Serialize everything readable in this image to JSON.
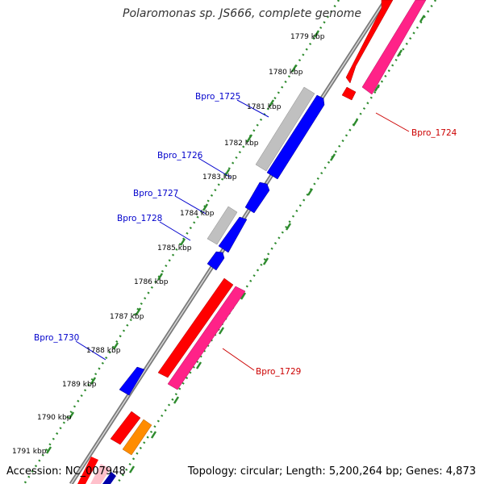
{
  "title": "Polaromonas sp. JS666, complete genome",
  "footer": {
    "accession": "Accession: NC_007948",
    "summary": "Topology: circular; Length: 5,200,264 bp; Genes: 4,873"
  },
  "colors": {
    "backbone": "#7a7a7a",
    "ticks_green": "#2e8b2e",
    "cds_red": "#ff0000",
    "cds_pink": "#ff2288",
    "cds_blue": "#0000ff",
    "cds_gray": "#c0c0c0",
    "cds_orange": "#ff8c00",
    "label_blue": "#0000cc",
    "label_red": "#cc0000"
  },
  "kbp_labels": [
    "1779 kbp",
    "1780 kbp",
    "1781 kbp",
    "1782 kbp",
    "1783 kbp",
    "1784 kbp",
    "1785 kbp",
    "1786 kbp",
    "1787 kbp",
    "1788 kbp",
    "1789 kbp",
    "1790 kbp",
    "1791 kbp"
  ],
  "gene_labels": [
    {
      "text": "Bpro_1725",
      "side": "left"
    },
    {
      "text": "Bpro_1726",
      "side": "left"
    },
    {
      "text": "Bpro_1727",
      "side": "left"
    },
    {
      "text": "Bpro_1728",
      "side": "left"
    },
    {
      "text": "Bpro_1730",
      "side": "left"
    },
    {
      "text": "Bpro_1724",
      "side": "right"
    },
    {
      "text": "Bpro_1729",
      "side": "right"
    }
  ]
}
